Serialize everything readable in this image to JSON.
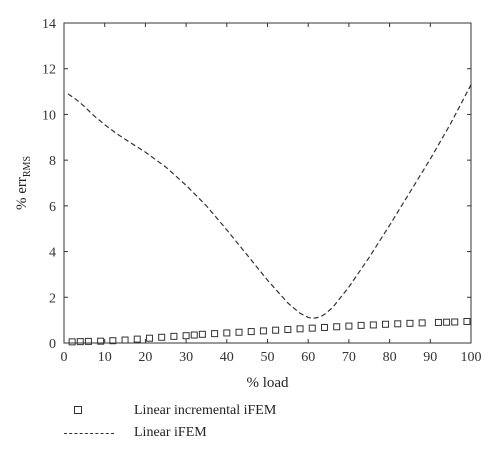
{
  "chart_data": {
    "type": "line",
    "title": "",
    "xlabel": "% load",
    "ylabel_main": "% err",
    "ylabel_sub": "RMS",
    "xlim": [
      0,
      100
    ],
    "ylim": [
      0,
      14
    ],
    "xticks": [
      0,
      10,
      20,
      30,
      40,
      50,
      60,
      70,
      80,
      90,
      100
    ],
    "yticks": [
      0,
      2,
      4,
      6,
      8,
      10,
      12,
      14
    ],
    "grid": false,
    "legend_position": "below",
    "series": [
      {
        "name": "Linear incremental iFEM",
        "style": "square-markers",
        "x": [
          2,
          4,
          6,
          9,
          12,
          15,
          18,
          21,
          24,
          27,
          30,
          32,
          34,
          37,
          40,
          43,
          46,
          49,
          52,
          55,
          58,
          61,
          64,
          67,
          70,
          73,
          76,
          79,
          82,
          85,
          88,
          92,
          94,
          96,
          99
        ],
        "y": [
          0.05,
          0.06,
          0.07,
          0.08,
          0.1,
          0.13,
          0.17,
          0.21,
          0.25,
          0.29,
          0.32,
          0.35,
          0.38,
          0.41,
          0.44,
          0.47,
          0.5,
          0.53,
          0.56,
          0.59,
          0.62,
          0.65,
          0.68,
          0.71,
          0.74,
          0.77,
          0.79,
          0.82,
          0.84,
          0.86,
          0.88,
          0.9,
          0.91,
          0.92,
          0.94
        ]
      },
      {
        "name": "Linear iFEM",
        "style": "dashed-line",
        "x": [
          1,
          3,
          5,
          7,
          10,
          13,
          16,
          20,
          25,
          30,
          35,
          40,
          45,
          50,
          55,
          58,
          60,
          61,
          62,
          63,
          64,
          66,
          70,
          75,
          80,
          85,
          90,
          95,
          100
        ],
        "y": [
          10.9,
          10.65,
          10.35,
          10.0,
          9.55,
          9.15,
          8.8,
          8.35,
          7.7,
          6.9,
          6.0,
          4.95,
          3.85,
          2.75,
          1.75,
          1.3,
          1.12,
          1.08,
          1.1,
          1.15,
          1.25,
          1.55,
          2.45,
          3.75,
          5.15,
          6.6,
          8.05,
          9.6,
          11.3
        ]
      }
    ]
  }
}
